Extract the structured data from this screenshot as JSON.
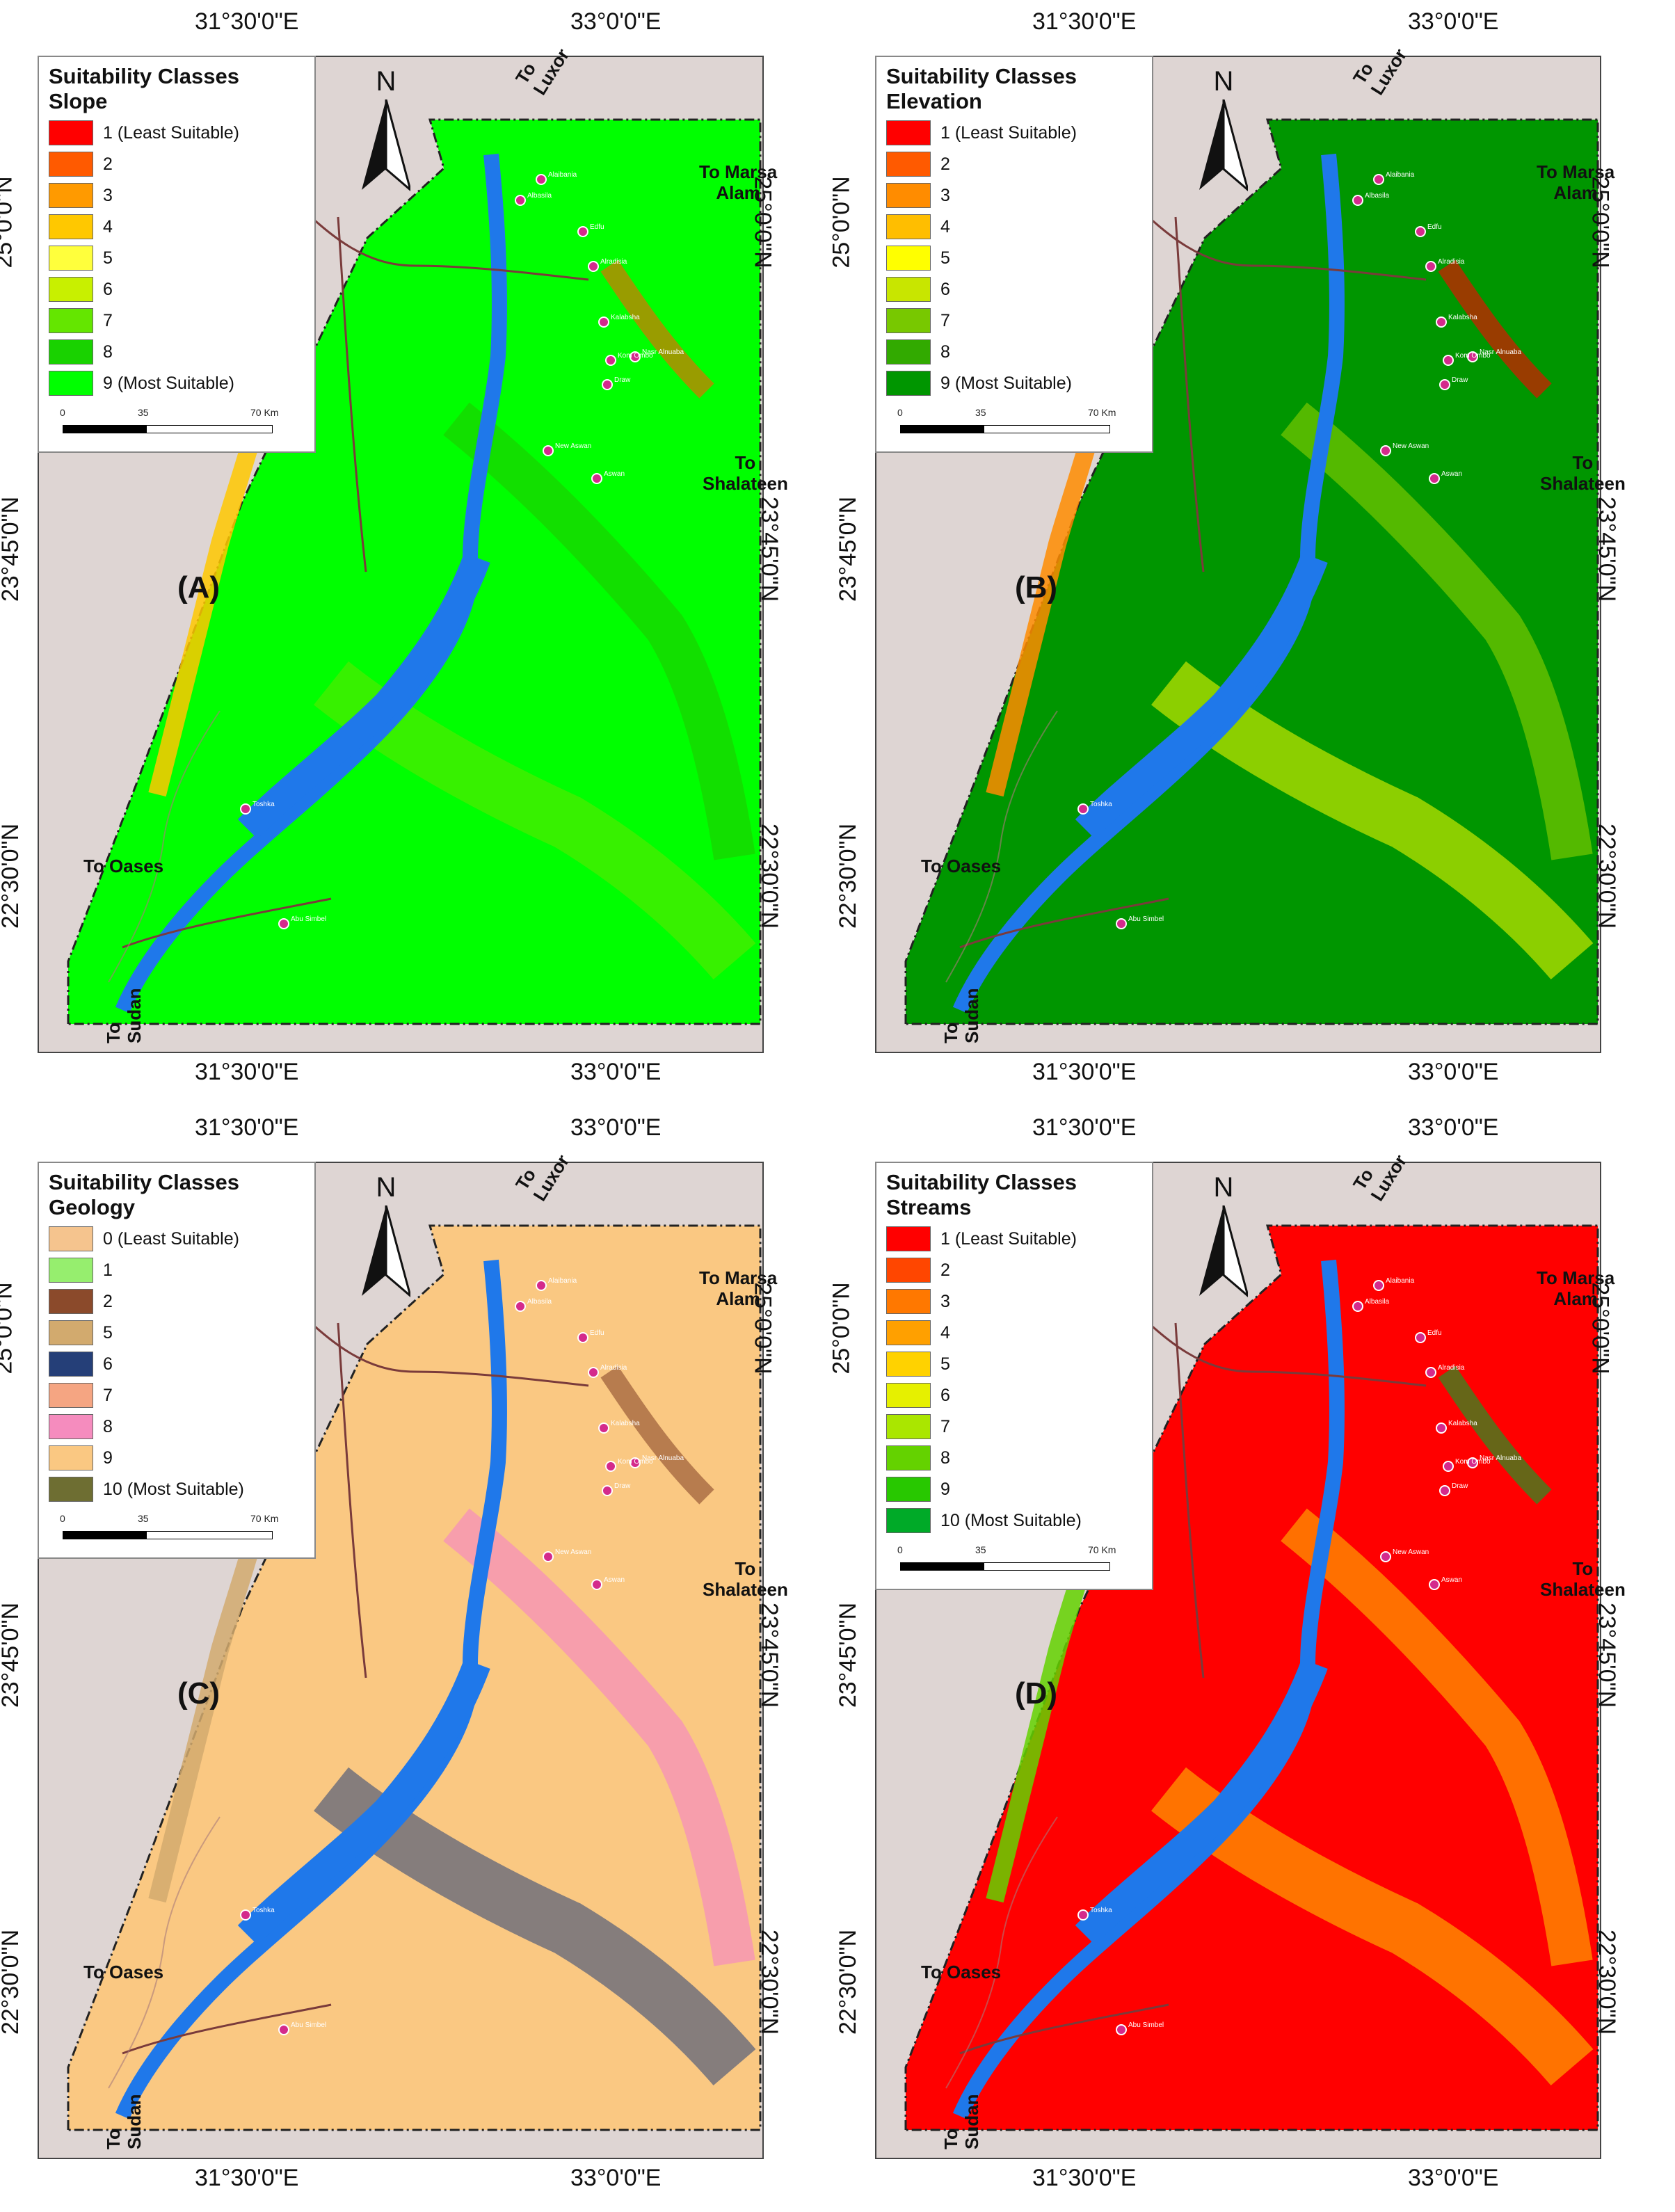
{
  "coords": {
    "lon_left": "31°30'0\"E",
    "lon_right": "33°0'0\"E",
    "lat_top": "25°0'0\"N",
    "lat_mid": "23°45'0\"N",
    "lat_bottom": "22°30'0\"N"
  },
  "direction_labels": {
    "luxor_to": "To",
    "luxor_name": "Luxor",
    "marsa_line1": "To Marsa",
    "marsa_line2": "Alam",
    "shalateen_to": "To",
    "shalateen_name": "Shalateen",
    "oases": "To Oases",
    "sudan_to": "To",
    "sudan_name": "Sudan"
  },
  "north_arrow": {
    "label": "N"
  },
  "scale_bar": {
    "t0": "0",
    "t1": "35",
    "t2": "70 Km"
  },
  "towns": [
    "Alaibania",
    "Albasila",
    "Edfu",
    "Alradisia",
    "Kalabsha",
    "Nasr Alnuaba",
    "Kom Ombo",
    "Draw",
    "New Aswan",
    "Aswan",
    "Toshka",
    "Abu Simbel"
  ],
  "colors": {
    "lake": "#1f78ea",
    "background": "#ded5d3",
    "roads": "#7a3b3b"
  },
  "panels": [
    {
      "letter": "(A)",
      "legend_title_1": "Suitability Classes",
      "legend_title_2": "Slope",
      "legend": [
        {
          "label": "1 (Least Suitable)",
          "color": "#ff0000"
        },
        {
          "label": "2",
          "color": "#ff5a00"
        },
        {
          "label": "3",
          "color": "#ff9a00"
        },
        {
          "label": "4",
          "color": "#ffc800"
        },
        {
          "label": "5",
          "color": "#ffff3c"
        },
        {
          "label": "6",
          "color": "#c8f000"
        },
        {
          "label": "7",
          "color": "#64e600"
        },
        {
          "label": "8",
          "color": "#19d200"
        },
        {
          "label": "9 (Most Suitable)",
          "color": "#00ff00"
        }
      ]
    },
    {
      "letter": "(B)",
      "legend_title_1": "Suitability Classes",
      "legend_title_2": "Elevation",
      "legend": [
        {
          "label": "1 (Least Suitable)",
          "color": "#ff0000"
        },
        {
          "label": "2",
          "color": "#ff5a00"
        },
        {
          "label": "3",
          "color": "#ff8c00"
        },
        {
          "label": "4",
          "color": "#ffbe00"
        },
        {
          "label": "5",
          "color": "#ffff00"
        },
        {
          "label": "6",
          "color": "#c8e600"
        },
        {
          "label": "7",
          "color": "#78c800"
        },
        {
          "label": "8",
          "color": "#32aa00"
        },
        {
          "label": "9 (Most Suitable)",
          "color": "#009600"
        }
      ]
    },
    {
      "letter": "(C)",
      "legend_title_1": "Suitability Classes",
      "legend_title_2": "Geology",
      "legend": [
        {
          "label": "0 (Least Suitable)",
          "color": "#f5c48e"
        },
        {
          "label": "1",
          "color": "#96ee6e"
        },
        {
          "label": "2",
          "color": "#8b4a2b"
        },
        {
          "label": "5",
          "color": "#d2aa6e"
        },
        {
          "label": "6",
          "color": "#253f78"
        },
        {
          "label": "7",
          "color": "#f5a582"
        },
        {
          "label": "8",
          "color": "#f58cbe"
        },
        {
          "label": "9",
          "color": "#fac882"
        },
        {
          "label": "10 (Most Suitable)",
          "color": "#6e6e32"
        }
      ]
    },
    {
      "letter": "(D)",
      "legend_title_1": "Suitability Classes",
      "legend_title_2": "Streams",
      "legend": [
        {
          "label": "1 (Least Suitable)",
          "color": "#ff0000"
        },
        {
          "label": "2",
          "color": "#ff4600"
        },
        {
          "label": "3",
          "color": "#ff7800"
        },
        {
          "label": "4",
          "color": "#ffa000"
        },
        {
          "label": "5",
          "color": "#ffd200"
        },
        {
          "label": "6",
          "color": "#e6f000"
        },
        {
          "label": "7",
          "color": "#aae600"
        },
        {
          "label": "8",
          "color": "#64d200"
        },
        {
          "label": "9",
          "color": "#28c800"
        },
        {
          "label": "10 (Most Suitable)",
          "color": "#00aa28"
        }
      ]
    }
  ]
}
